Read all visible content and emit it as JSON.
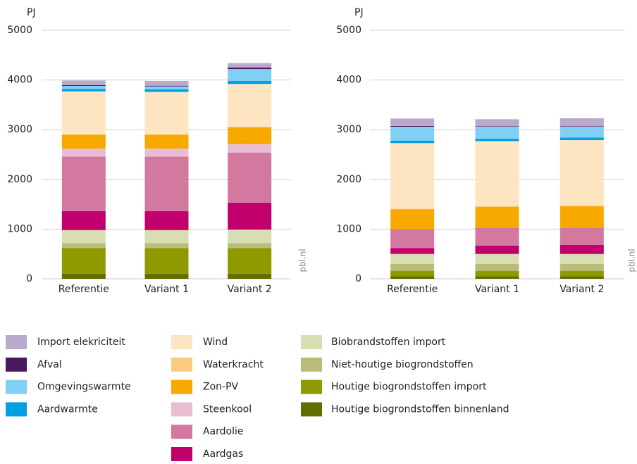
{
  "chart_data": [
    {
      "type": "stacked_bar",
      "y_label": "PJ",
      "watermark": "pbl.nl",
      "categories": [
        "Referentie",
        "Variant 1",
        "Variant 2"
      ],
      "ylim": [
        0,
        5000
      ],
      "yticks": [
        0,
        1000,
        2000,
        3000,
        4000,
        5000
      ],
      "grid": true,
      "series": [
        {
          "values": [
            95,
            95,
            90
          ]
        },
        {
          "values": [
            15,
            15,
            30
          ]
        },
        {
          "values": [
            60,
            60,
            240
          ]
        },
        {
          "values": [
            50,
            50,
            60
          ]
        },
        {
          "values": [
            860,
            850,
            860
          ]
        },
        {
          "values": [
            10,
            10,
            10
          ]
        },
        {
          "values": [
            280,
            280,
            340
          ]
        },
        {
          "values": [
            160,
            160,
            170
          ]
        },
        {
          "values": [
            1100,
            1100,
            1010
          ]
        },
        {
          "values": [
            380,
            380,
            540
          ]
        },
        {
          "values": [
            260,
            260,
            270
          ]
        },
        {
          "values": [
            100,
            100,
            100
          ]
        },
        {
          "values": [
            520,
            520,
            520
          ]
        },
        {
          "values": [
            100,
            100,
            100
          ]
        }
      ]
    },
    {
      "type": "stacked_bar",
      "y_label": "PJ",
      "watermark": "pbl.nl",
      "categories": [
        "Referentie",
        "Variant 1",
        "Variant 2"
      ],
      "ylim": [
        0,
        5000
      ],
      "yticks": [
        0,
        1000,
        2000,
        3000,
        4000,
        5000
      ],
      "grid": true,
      "series": [
        {
          "values": [
            150,
            140,
            160
          ]
        },
        {
          "values": [
            15,
            10,
            10
          ]
        },
        {
          "values": [
            280,
            240,
            220
          ]
        },
        {
          "values": [
            50,
            50,
            50
          ]
        },
        {
          "values": [
            1320,
            1310,
            1320
          ]
        },
        {
          "values": [
            10,
            10,
            10
          ]
        },
        {
          "values": [
            400,
            420,
            430
          ]
        },
        {
          "values": [
            0,
            0,
            0
          ]
        },
        {
          "values": [
            380,
            360,
            350
          ]
        },
        {
          "values": [
            120,
            170,
            180
          ]
        },
        {
          "values": [
            200,
            200,
            200
          ]
        },
        {
          "values": [
            140,
            140,
            140
          ]
        },
        {
          "values": [
            110,
            110,
            110
          ]
        },
        {
          "values": [
            50,
            50,
            50
          ]
        }
      ]
    }
  ],
  "legend": {
    "items": [
      {
        "name": "Import elekriciteit",
        "color": "#b9a9ca"
      },
      {
        "name": "Afval",
        "color": "#4a1860"
      },
      {
        "name": "Omgevingswarmte",
        "color": "#80cff5"
      },
      {
        "name": "Aardwarmte",
        "color": "#00a0e2"
      },
      {
        "name": "Wind",
        "color": "#fde5c2"
      },
      {
        "name": "Waterkracht",
        "color": "#fdcb80"
      },
      {
        "name": "Zon-PV",
        "color": "#f8a900"
      },
      {
        "name": "Steenkool",
        "color": "#e9bdd3"
      },
      {
        "name": "Aardolie",
        "color": "#d3789f"
      },
      {
        "name": "Aardgas",
        "color": "#c1006d"
      },
      {
        "name": "Biobrandstoffen import",
        "color": "#d9ddb4"
      },
      {
        "name": "Niet-houtige biogrondstoffen",
        "color": "#babc79"
      },
      {
        "name": "Houtige biogrondstoffen import",
        "color": "#8e9a00"
      },
      {
        "name": "Houtige biogrondstoffen binnenland",
        "color": "#646d00"
      }
    ]
  }
}
